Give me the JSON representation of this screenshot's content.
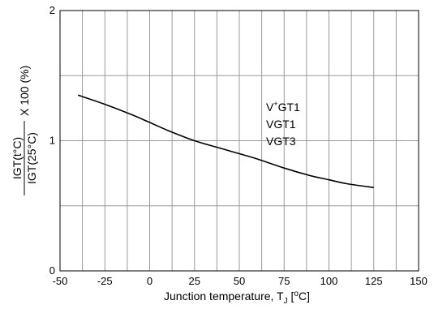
{
  "chart_data": {
    "type": "line",
    "title": "",
    "xlabel": "Junction temperature, T",
    "xlabel_sub": "J",
    "xlabel_unit_open": " [",
    "xlabel_unit_sup": "o",
    "xlabel_unit_close": "C]",
    "ylabel": {
      "numerator": "IGT(t°C)",
      "denominator": "IGT(25°C)",
      "suffix": "X 100 (%)"
    },
    "xlim": [
      -50,
      150
    ],
    "ylim": [
      0,
      2
    ],
    "x_ticks": [
      -50,
      -25,
      0,
      25,
      50,
      75,
      100,
      125,
      150
    ],
    "y_ticks": [
      0,
      1,
      2
    ],
    "grid": true,
    "annotations": [
      {
        "base": "V",
        "sup": "+",
        "rest": "GT1"
      },
      {
        "base": "V",
        "sup": "",
        "rest": "GT1"
      },
      {
        "base": "V",
        "sup": "",
        "rest": "GT3"
      }
    ],
    "series": [
      {
        "x": [
          -40,
          -25,
          -10,
          0,
          10,
          25,
          40,
          50,
          60,
          75,
          90,
          100,
          110,
          125
        ],
        "y": [
          1.35,
          1.28,
          1.2,
          1.14,
          1.08,
          1.0,
          0.94,
          0.9,
          0.86,
          0.79,
          0.73,
          0.7,
          0.67,
          0.64
        ]
      }
    ],
    "line_color": "#000000",
    "grid_color": "#9a9a9a"
  }
}
